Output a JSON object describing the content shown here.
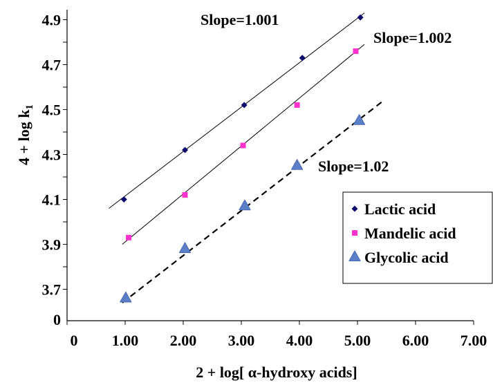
{
  "chart_data": {
    "type": "scatter",
    "xlabel": "2 + log[ α-hydroxy acids]",
    "ylabel_main": "4 + log k",
    "ylabel_sub": "1",
    "x_ticks": [
      {
        "value": 0,
        "label": "0"
      },
      {
        "value": 1,
        "label": "1.00"
      },
      {
        "value": 2,
        "label": "2.00"
      },
      {
        "value": 3,
        "label": "3.00"
      },
      {
        "value": 4,
        "label": "4.00"
      },
      {
        "value": 5,
        "label": "5.00"
      },
      {
        "value": 6,
        "label": "6.00"
      },
      {
        "value": 7,
        "label": "7.00"
      }
    ],
    "y_ticks": [
      {
        "value": 3.7,
        "label": "3.7"
      },
      {
        "value": 3.9,
        "label": "3.9"
      },
      {
        "value": 4.1,
        "label": "4.1"
      },
      {
        "value": 4.3,
        "label": "4.3"
      },
      {
        "value": 4.5,
        "label": "4.5"
      },
      {
        "value": 4.7,
        "label": "4.7"
      },
      {
        "value": 4.9,
        "label": "4.9"
      }
    ],
    "y_axis_break": {
      "at": 3.7,
      "origin_label": "0"
    },
    "xlim": [
      0,
      7
    ],
    "ylim": [
      3.56,
      4.92
    ],
    "grid": false,
    "legend_position": "right",
    "series": [
      {
        "name": "Lactic acid",
        "marker": "diamond",
        "color": "#0a0a6e",
        "x": [
          0.98,
          2.03,
          3.05,
          4.05,
          5.05
        ],
        "y": [
          4.1,
          4.32,
          4.52,
          4.73,
          4.91
        ],
        "fit": {
          "x": [
            0.72,
            5.12
          ],
          "y": [
            4.06,
            4.93
          ],
          "style": "solid"
        },
        "slope_label": "Slope=1.001"
      },
      {
        "name": "Mandelic acid",
        "marker": "square",
        "color": "#ff33cc",
        "x": [
          1.06,
          2.03,
          3.03,
          3.96,
          4.97
        ],
        "y": [
          3.93,
          4.12,
          4.34,
          4.52,
          4.76
        ],
        "fit": {
          "x": [
            0.95,
            5.12
          ],
          "y": [
            3.9,
            4.79
          ],
          "style": "solid"
        },
        "slope_label": "Slope=1.002"
      },
      {
        "name": "Glycolic acid",
        "marker": "triangle",
        "color": "#5b7fc9",
        "x": [
          1.01,
          2.03,
          3.06,
          3.96,
          5.03
        ],
        "y": [
          3.66,
          3.88,
          4.07,
          4.25,
          4.45
        ],
        "fit": {
          "x": [
            0.95,
            5.45
          ],
          "y": [
            3.64,
            4.54
          ],
          "style": "dashed"
        },
        "slope_label": "Slope=1.02"
      }
    ]
  }
}
